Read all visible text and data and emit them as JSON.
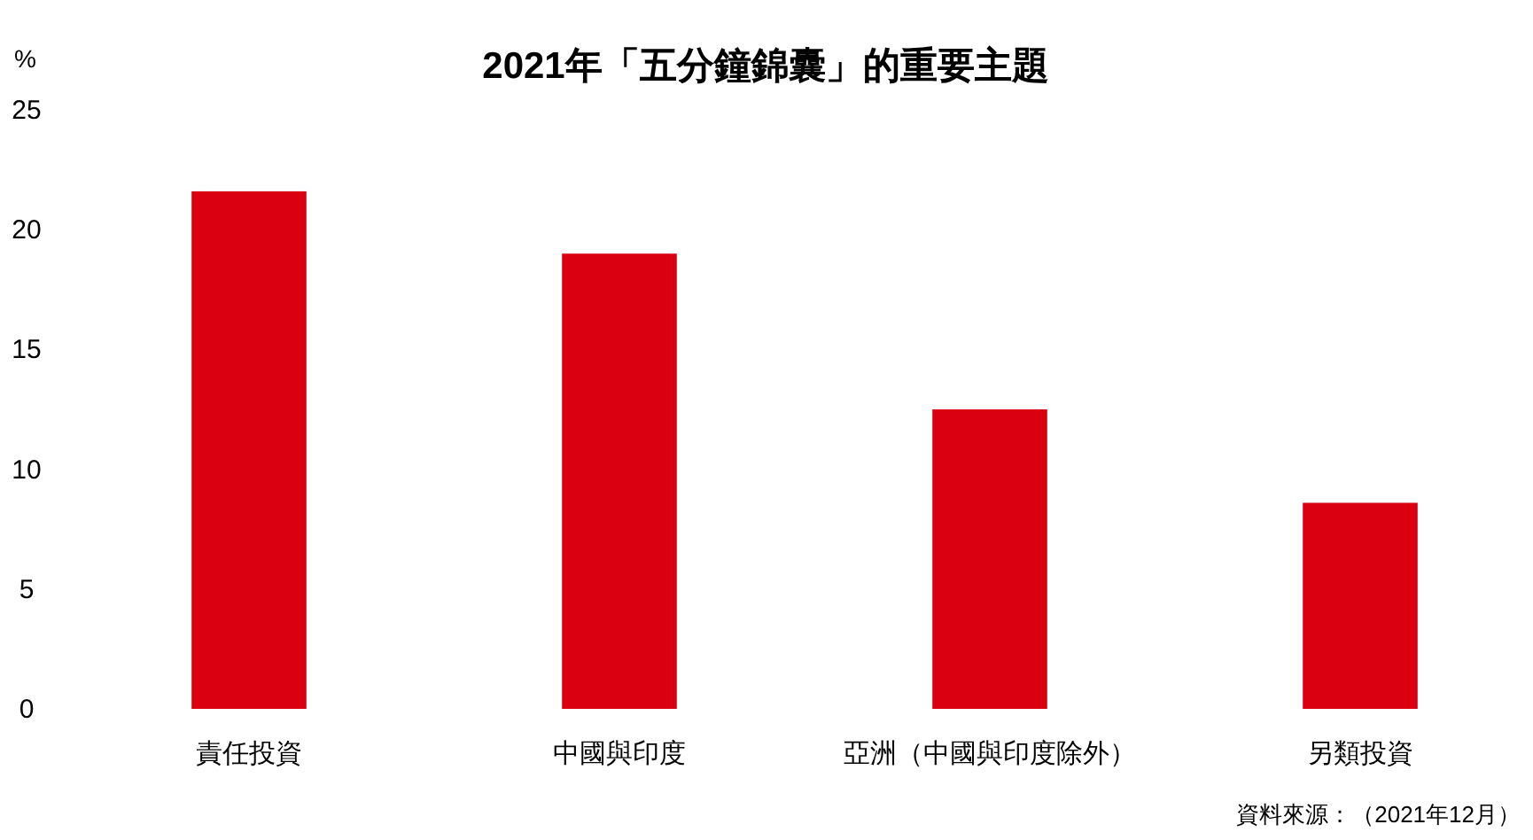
{
  "chart_data": {
    "type": "bar",
    "title": "2021年「五分鐘錦囊」的重要主題",
    "ylabel": "%",
    "categories": [
      "責任投資",
      "中國與印度",
      "亞洲（中國與印度除外）",
      "另類投資"
    ],
    "values": [
      21.6,
      19.0,
      12.5,
      8.6
    ],
    "color": "#db0011",
    "ylim": [
      0,
      25
    ],
    "yticks": [
      0,
      5,
      10,
      15,
      20,
      25
    ],
    "annotations": [
      "資料來源：（2021年12月）"
    ]
  }
}
